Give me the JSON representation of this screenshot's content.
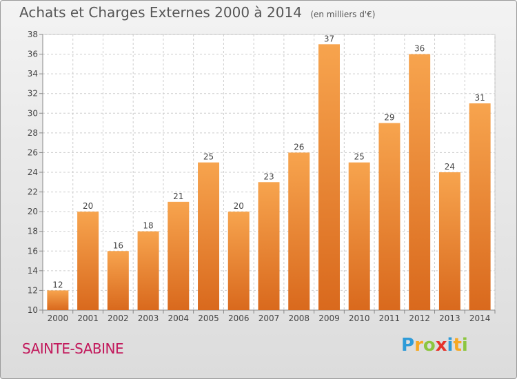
{
  "title": "Achats et Charges Externes 2000 à 2014",
  "subtitle": "(en milliers d'€)",
  "commune": "SAINTE-SABINE",
  "logo": {
    "letters": [
      "P",
      "r",
      "o",
      "x",
      "i",
      "t",
      "i"
    ],
    "colors": [
      "#2e9bd8",
      "#f7a823",
      "#8cc63f",
      "#e6332a",
      "#2e9bd8",
      "#f7a823",
      "#8cc63f"
    ]
  },
  "colors": {
    "bar_top": "#f7a44e",
    "bar_bottom": "#d9691d",
    "grid": "#cccccc",
    "text": "#444444"
  },
  "chart_data": {
    "type": "bar",
    "title": "Achats et Charges Externes 2000 à 2014",
    "subtitle": "(en milliers d'€)",
    "categories": [
      "2000",
      "2001",
      "2002",
      "2003",
      "2004",
      "2005",
      "2006",
      "2007",
      "2008",
      "2009",
      "2010",
      "2011",
      "2012",
      "2013",
      "2014"
    ],
    "values": [
      12,
      20,
      16,
      18,
      21,
      25,
      20,
      23,
      26,
      37,
      25,
      29,
      36,
      24,
      31
    ],
    "ylim": [
      10,
      38
    ],
    "yticks": [
      10,
      12,
      14,
      16,
      18,
      20,
      22,
      24,
      26,
      28,
      30,
      32,
      34,
      36,
      38
    ],
    "grid": true,
    "xlabel": "",
    "ylabel": ""
  }
}
